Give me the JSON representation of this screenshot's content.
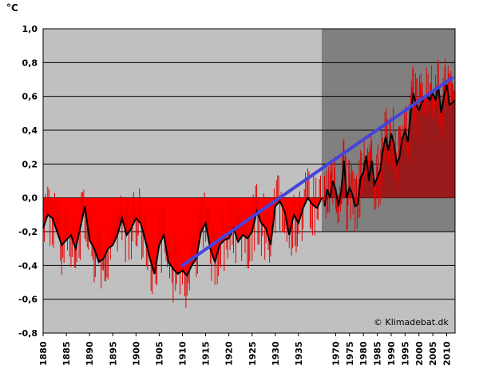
{
  "chart_data": {
    "type": "line",
    "unit_label": "°C",
    "credit": "© Klimadebat.dk",
    "ylim": [
      -0.8,
      1.0
    ],
    "y_ticks": [
      "1,0",
      "0,8",
      "0,6",
      "0,4",
      "0,2",
      "0,0",
      "-0,2",
      "-0,4",
      "-0,6",
      "-0,8"
    ],
    "x_tick_labels": [
      "1880",
      "1885",
      "1890",
      "1895",
      "1900",
      "1905",
      "1910",
      "1915",
      "1920",
      "1925",
      "1930",
      "1935",
      "1970",
      "1975",
      "1980",
      "1985",
      "1990",
      "1995",
      "2000",
      "2005",
      "2010"
    ],
    "grid": true,
    "note": "x-axis is discontinuous: 1880–1940 then 1965–2013",
    "colors": {
      "plot_bg": "#c0c0c0",
      "recent_bg": "#808080",
      "negative_fill": "#ff0000",
      "positive_fill": "#991a1a",
      "monthly_line": "#e60000",
      "smooth_line": "#000000",
      "trend_line": "#4444dd"
    },
    "series": [
      {
        "role": "smoothed",
        "x": [
          1880,
          1881,
          1882,
          1883,
          1884,
          1885,
          1886,
          1887,
          1888,
          1889,
          1890,
          1891,
          1892,
          1893,
          1894,
          1895,
          1896,
          1897,
          1898,
          1899,
          1900,
          1901,
          1902,
          1903,
          1904,
          1905,
          1906,
          1907,
          1908,
          1909,
          1910,
          1911,
          1912,
          1913,
          1914,
          1915,
          1916,
          1917,
          1918,
          1919,
          1920,
          1921,
          1922,
          1923,
          1924,
          1925,
          1926,
          1927,
          1928,
          1929,
          1930,
          1931,
          1932,
          1933,
          1934,
          1935,
          1936,
          1937,
          1938,
          1939,
          1940,
          1966,
          1967,
          1968,
          1969,
          1970,
          1971,
          1972,
          1973,
          1974,
          1975,
          1976,
          1977,
          1978,
          1979,
          1980,
          1981,
          1982,
          1983,
          1984,
          1985,
          1986,
          1987,
          1988,
          1989,
          1990,
          1991,
          1992,
          1993,
          1994,
          1995,
          1996,
          1997,
          1998,
          1999,
          2000,
          2001,
          2002,
          2003,
          2004,
          2005,
          2006,
          2007,
          2008,
          2009,
          2010,
          2011,
          2012,
          2013
        ],
        "values": [
          -0.18,
          -0.1,
          -0.12,
          -0.2,
          -0.28,
          -0.25,
          -0.22,
          -0.3,
          -0.18,
          -0.05,
          -0.25,
          -0.3,
          -0.38,
          -0.36,
          -0.3,
          -0.28,
          -0.22,
          -0.12,
          -0.22,
          -0.18,
          -0.12,
          -0.15,
          -0.25,
          -0.36,
          -0.45,
          -0.28,
          -0.22,
          -0.38,
          -0.42,
          -0.45,
          -0.43,
          -0.46,
          -0.4,
          -0.36,
          -0.2,
          -0.15,
          -0.3,
          -0.38,
          -0.28,
          -0.25,
          -0.24,
          -0.18,
          -0.26,
          -0.22,
          -0.24,
          -0.2,
          -0.08,
          -0.15,
          -0.18,
          -0.28,
          -0.05,
          -0.02,
          -0.08,
          -0.22,
          -0.1,
          -0.15,
          -0.06,
          0.0,
          -0.04,
          -0.06,
          0.0,
          -0.05,
          0.05,
          0.0,
          0.1,
          0.05,
          -0.05,
          0.04,
          0.22,
          0.0,
          0.06,
          0.02,
          -0.05,
          -0.04,
          0.12,
          0.15,
          0.25,
          0.1,
          0.22,
          0.08,
          0.12,
          0.16,
          0.28,
          0.36,
          0.28,
          0.38,
          0.32,
          0.2,
          0.24,
          0.35,
          0.4,
          0.33,
          0.5,
          0.62,
          0.55,
          0.52,
          0.56,
          0.6,
          0.6,
          0.58,
          0.62,
          0.58,
          0.66,
          0.5,
          0.6,
          0.67,
          0.55,
          0.56,
          0.58
        ]
      },
      {
        "role": "trend",
        "x": [
          1910,
          2012
        ],
        "values": [
          -0.4,
          0.71
        ]
      }
    ]
  }
}
